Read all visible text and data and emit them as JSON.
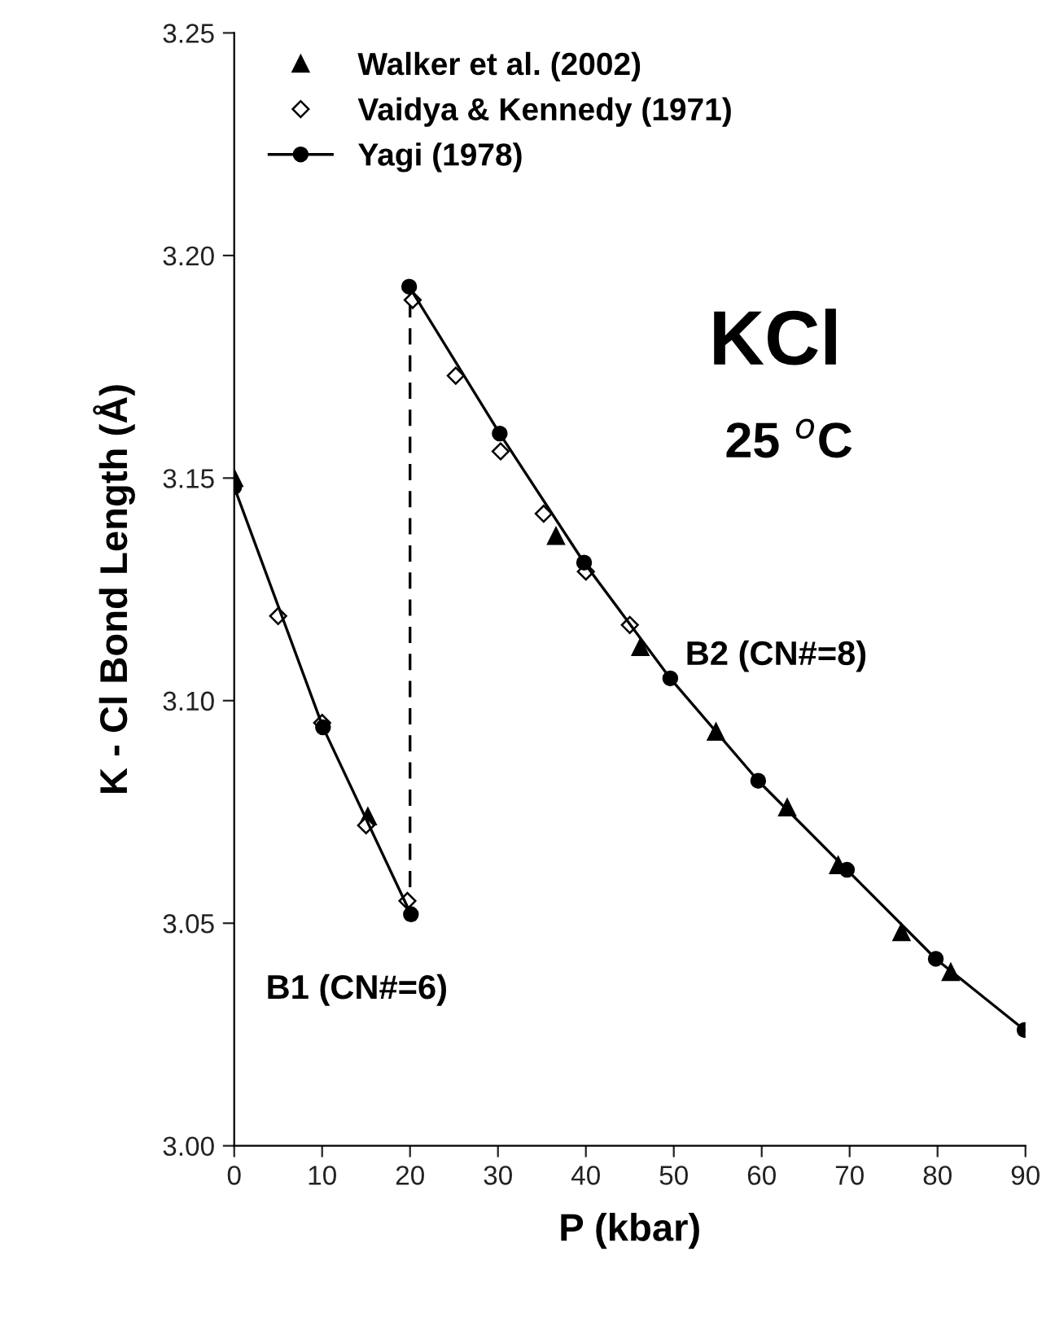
{
  "chart_data": {
    "type": "line",
    "xlabel": "P (kbar)",
    "ylabel": "K - Cl Bond Length (Å)",
    "xlim": [
      0,
      90
    ],
    "xticks": [
      0,
      10,
      20,
      30,
      40,
      50,
      60,
      70,
      80,
      90
    ],
    "ylim": [
      3.0,
      3.25
    ],
    "yticks": [
      {
        "value": 3.0,
        "label": "3.00"
      },
      {
        "value": 3.05,
        "label": "3.05"
      },
      {
        "value": 3.1,
        "label": "3.10"
      },
      {
        "value": 3.15,
        "label": "3.15"
      },
      {
        "value": 3.2,
        "label": "3.20"
      },
      {
        "value": 3.25,
        "label": "3.25"
      }
    ],
    "grid": false,
    "legend": "top left",
    "annotations": [
      "KCl",
      "25 $^{o}$C",
      "B1 (CN#=6)",
      "B2 (CN#=8)"
    ],
    "series": [
      {
        "marker": "none",
        "line_style": "dashed",
        "color": "#000000",
        "x": [
          20,
          20
        ],
        "values": [
          3.052,
          3.193
        ]
      },
      {
        "name": "Walker et al. (2002)",
        "type": "scatter",
        "marker": "triangle",
        "color": "#000000",
        "x": [
          0,
          15.2,
          36.6,
          46.2,
          54.8,
          62.9,
          68.7,
          75.9,
          81.5
        ],
        "values": [
          3.15,
          3.074,
          3.137,
          3.112,
          3.093,
          3.076,
          3.063,
          3.048,
          3.039
        ]
      },
      {
        "name": "Vaidya & Kennedy (1971)",
        "type": "scatter",
        "marker": "diamond",
        "color": "#ffffff",
        "x": [
          5,
          10,
          15,
          19.7,
          20.3,
          25.2,
          30.3,
          35.2,
          40,
          45
        ],
        "values": [
          3.119,
          3.095,
          3.072,
          3.055,
          3.19,
          3.173,
          3.156,
          3.142,
          3.129,
          3.117
        ]
      },
      {
        "name": "Yagi (1978)",
        "marker": "circle",
        "line_style": "solid",
        "color": "#000000",
        "x": [
          0,
          10.1,
          20.1,
          20,
          19.9,
          30.2,
          39.8,
          49.6,
          59.6,
          69.7,
          79.8,
          89.9
        ],
        "values": [
          3.148,
          3.094,
          3.052,
          null,
          3.193,
          3.16,
          3.131,
          3.105,
          3.082,
          3.062,
          3.042,
          3.026
        ]
      }
    ]
  }
}
